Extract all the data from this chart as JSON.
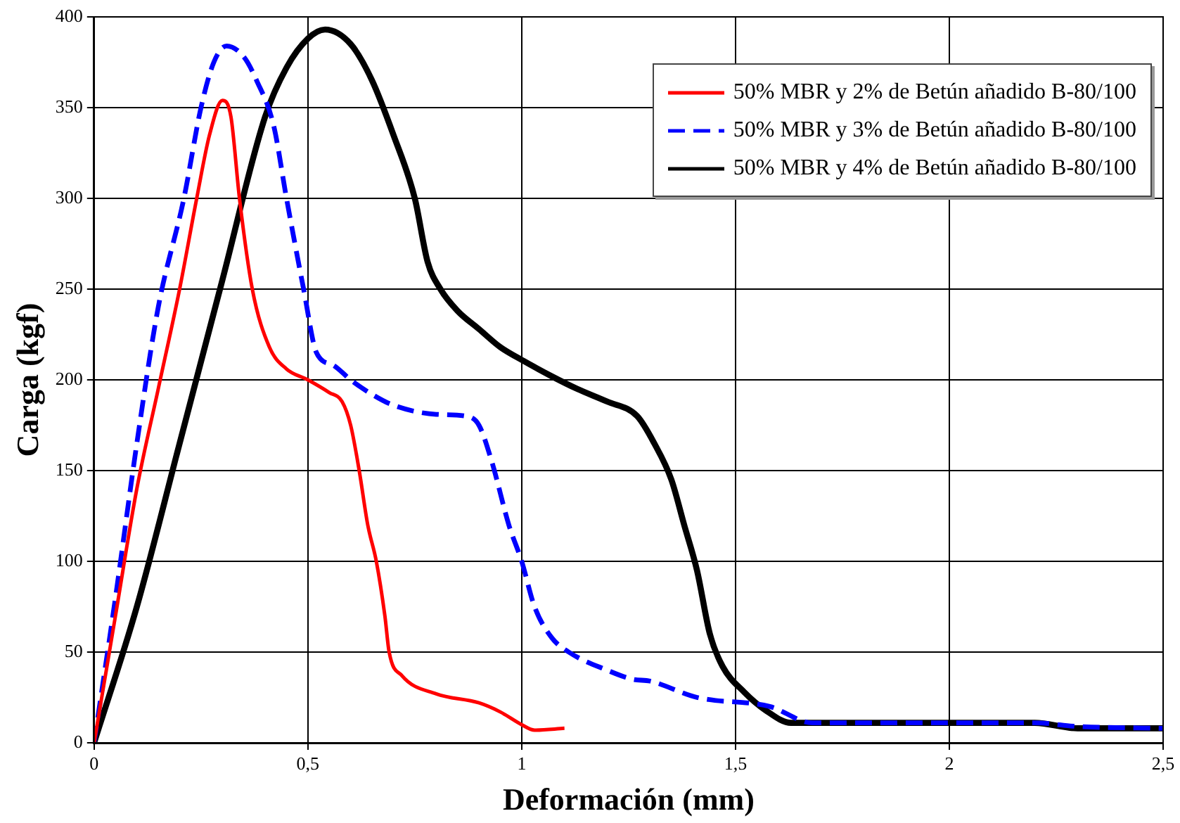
{
  "chart_data": {
    "type": "line",
    "xlabel": "Deformación (mm)",
    "ylabel": "Carga (kgf)",
    "xlim": [
      0,
      2.5
    ],
    "xticks": [
      0,
      {
        "value": 0.5,
        "label": "0,5"
      },
      1,
      {
        "value": 1.5,
        "label": "1,5"
      },
      2,
      {
        "value": 2.5,
        "label": "2,5"
      }
    ],
    "ylim": [
      0,
      400
    ],
    "yticks": [
      0,
      50,
      100,
      150,
      200,
      250,
      300,
      350,
      400
    ],
    "grid": true,
    "legend": "top right",
    "marker": "none",
    "series": [
      {
        "name": "50% MBR y 2% de Betún añadido B-80/100",
        "color": "#ff0000",
        "line_style": "solid",
        "x": [
          0,
          0.05,
          0.1,
          0.15,
          0.2,
          0.24,
          0.27,
          0.3,
          0.32,
          0.34,
          0.37,
          0.41,
          0.45,
          0.5,
          0.55,
          0.58,
          0.6,
          0.62,
          0.64,
          0.66,
          0.68,
          0.69,
          0.72,
          0.8,
          0.9,
          0.95,
          1.0,
          1.03,
          1.1
        ],
        "values": [
          0,
          70,
          140,
          195,
          250,
          300,
          335,
          354,
          345,
          300,
          250,
          218,
          206,
          200,
          193,
          188,
          175,
          150,
          120,
          100,
          70,
          50,
          37,
          27,
          22,
          17,
          10,
          7,
          8
        ]
      },
      {
        "name": "50% MBR y 3% de Betún añadido B-80/100",
        "color": "#0000ff",
        "line_style": "dashed",
        "x": [
          0,
          0.05,
          0.1,
          0.15,
          0.21,
          0.25,
          0.28,
          0.31,
          0.35,
          0.38,
          0.42,
          0.45,
          0.49,
          0.52,
          0.56,
          0.6,
          0.65,
          0.7,
          0.8,
          0.87,
          0.9,
          0.93,
          0.97,
          1.0,
          1.03,
          1.07,
          1.11,
          1.2,
          1.26,
          1.3,
          1.41,
          1.58,
          1.68,
          1.8,
          2.0,
          2.2,
          2.3,
          2.5
        ],
        "values": [
          0,
          80,
          165,
          240,
          300,
          350,
          375,
          384,
          378,
          365,
          340,
          300,
          250,
          215,
          208,
          200,
          192,
          186,
          181,
          180,
          175,
          155,
          120,
          100,
          75,
          58,
          50,
          40,
          35,
          34,
          25,
          20,
          11,
          11,
          11,
          11,
          9,
          8
        ]
      },
      {
        "name": "50% MBR y 4% de Betún añadido B-80/100",
        "color": "#000000",
        "line_style": "solid",
        "x": [
          0,
          0.1,
          0.2,
          0.3,
          0.4,
          0.45,
          0.5,
          0.54,
          0.6,
          0.65,
          0.7,
          0.75,
          0.78,
          0.81,
          0.85,
          0.9,
          0.95,
          1.0,
          1.07,
          1.13,
          1.2,
          1.27,
          1.31,
          1.35,
          1.38,
          1.41,
          1.44,
          1.47,
          1.52,
          1.57,
          1.63,
          1.8,
          2.0,
          2.2,
          2.3,
          2.5
        ],
        "values": [
          0,
          75,
          165,
          255,
          345,
          372,
          388,
          393,
          385,
          365,
          335,
          300,
          265,
          250,
          238,
          228,
          218,
          211,
          202,
          195,
          188,
          180,
          165,
          145,
          120,
          95,
          60,
          42,
          28,
          18,
          11,
          11,
          11,
          11,
          8,
          8
        ]
      }
    ]
  }
}
